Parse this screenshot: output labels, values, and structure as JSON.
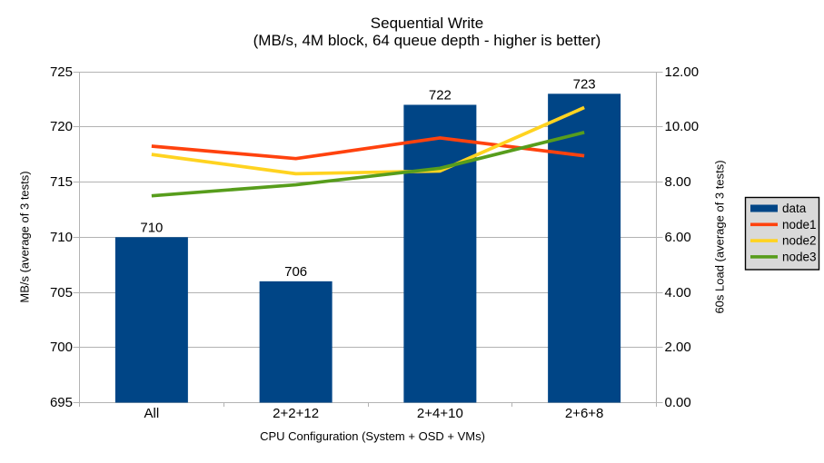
{
  "colors": {
    "background": "#ffffff",
    "grid": "#b3b3b3",
    "axis": "#b3b3b3",
    "text": "#000000",
    "legend_bg": "#d9d9d9",
    "legend_border": "#000000",
    "bar": "#004586",
    "node1": "#ff420e",
    "node2": "#ffd320",
    "node3": "#579d1c"
  },
  "chart_data": {
    "type": "combo-bar-line",
    "title": "Sequential Write",
    "subtitle": "(MB/s, 4M block, 64 queue depth - higher is better)",
    "xlabel": "CPU Configuration (System + OSD + VMs)",
    "ylabel_left": "MB/s (average of 3 tests)",
    "ylabel_right": "60s Load (average of 3 tests)",
    "categories": [
      "All",
      "2+2+12",
      "2+4+10",
      "2+6+8"
    ],
    "bar_series": {
      "name": "data",
      "axis": "left",
      "color": "#004586",
      "values": [
        710,
        706,
        722,
        723
      ],
      "labels": [
        "710",
        "706",
        "722",
        "723"
      ]
    },
    "line_series": [
      {
        "name": "node1",
        "axis": "right",
        "color": "#ff420e",
        "values": [
          9.3,
          8.85,
          9.6,
          8.95
        ]
      },
      {
        "name": "node2",
        "axis": "right",
        "color": "#ffd320",
        "values": [
          9.0,
          8.3,
          8.4,
          10.7
        ]
      },
      {
        "name": "node3",
        "axis": "right",
        "color": "#579d1c",
        "values": [
          7.5,
          7.9,
          8.5,
          9.8
        ]
      }
    ],
    "y_left": {
      "min": 695,
      "max": 725,
      "tick_labels": [
        "695",
        "700",
        "705",
        "710",
        "715",
        "720",
        "725"
      ]
    },
    "y_right": {
      "min": 0,
      "max": 12,
      "tick_labels": [
        "0.00",
        "2.00",
        "4.00",
        "6.00",
        "8.00",
        "10.00",
        "12.00"
      ]
    },
    "legend": {
      "position": "right",
      "items": [
        "data",
        "node1",
        "node2",
        "node3"
      ]
    },
    "grid": "horizontal-major"
  }
}
